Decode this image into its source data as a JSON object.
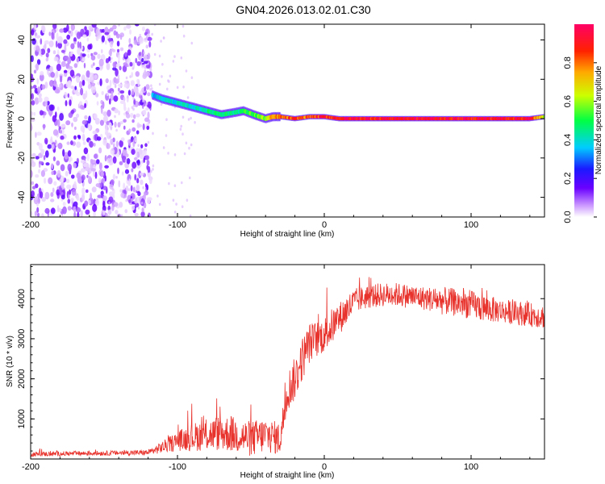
{
  "title": "GN04.2026.013.02.01.C30",
  "chart_data": [
    {
      "type": "heatmap",
      "xlabel": "Height of straight line (km)",
      "ylabel": "Frequency (Hz)",
      "xlim": [
        -200,
        150
      ],
      "ylim": [
        -50,
        48
      ],
      "xticks": [
        -200,
        -100,
        0,
        100
      ],
      "xtick_labels": [
        "-200",
        "-100",
        "0",
        "100"
      ],
      "yticks": [
        -40,
        -20,
        0,
        20,
        40
      ],
      "ytick_labels": [
        "-40",
        "-20",
        "0",
        "20",
        "40"
      ],
      "colorbar": {
        "label": "Normalized spectral amplitude",
        "range": [
          0,
          1
        ],
        "ticks": [
          0.0,
          0.2,
          0.4,
          0.6,
          0.8
        ],
        "tick_labels": [
          "0.0",
          "0.2",
          "0.4",
          "0.6",
          "0.8"
        ]
      },
      "noise_region_x": [
        -200,
        -118
      ],
      "ridge": {
        "x": [
          -117,
          -110,
          -100,
          -90,
          -80,
          -70,
          -62,
          -55,
          -48,
          -40,
          -35,
          -30,
          -20,
          -10,
          0,
          10,
          20,
          50,
          100,
          140,
          150
        ],
        "freq": [
          12,
          10,
          8,
          6,
          4,
          2,
          3,
          4,
          2,
          0,
          1,
          1,
          0,
          1,
          1,
          0,
          0,
          0,
          0,
          0,
          1
        ],
        "amplitude": [
          0.35,
          0.4,
          0.4,
          0.4,
          0.45,
          0.5,
          0.45,
          0.5,
          0.55,
          0.6,
          0.75,
          0.8,
          0.85,
          0.85,
          0.9,
          0.95,
          0.95,
          0.95,
          0.95,
          0.95,
          0.6
        ]
      }
    },
    {
      "type": "line",
      "xlabel": "Height of straight line (km)",
      "ylabel": "SNR (10 * v/v)",
      "xlim": [
        -200,
        150
      ],
      "ylim": [
        0,
        4850
      ],
      "xticks": [
        -200,
        -100,
        0,
        100
      ],
      "xtick_labels": [
        "-200",
        "-100",
        "0",
        "100"
      ],
      "yticks": [
        1000,
        2000,
        3000,
        4000
      ],
      "ytick_labels": [
        "1000",
        "2000",
        "3000",
        "4000"
      ],
      "series": [
        {
          "name": "SNR",
          "color": "#e8322c",
          "x": [
            -200,
            -180,
            -160,
            -140,
            -120,
            -110,
            -100,
            -90,
            -80,
            -70,
            -60,
            -50,
            -40,
            -30,
            -25,
            -20,
            -15,
            -10,
            -5,
            0,
            5,
            10,
            15,
            20,
            25,
            30,
            40,
            50,
            60,
            70,
            80,
            90,
            100,
            110,
            120,
            130,
            140,
            150
          ],
          "values": [
            120,
            130,
            140,
            150,
            160,
            300,
            450,
            550,
            600,
            650,
            600,
            500,
            600,
            500,
            1700,
            2000,
            2500,
            2900,
            3000,
            3100,
            3300,
            3500,
            3700,
            3900,
            4000,
            4050,
            4100,
            4100,
            4050,
            4000,
            3950,
            3900,
            3850,
            3750,
            3700,
            3650,
            3600,
            3550
          ],
          "spread": [
            60,
            60,
            60,
            60,
            70,
            150,
            250,
            350,
            400,
            450,
            450,
            450,
            450,
            400,
            500,
            550,
            550,
            500,
            450,
            450,
            450,
            400,
            400,
            350,
            300,
            300,
            300,
            300,
            300,
            300,
            350,
            350,
            350,
            350,
            300,
            300,
            300,
            300
          ]
        }
      ]
    }
  ],
  "colors": {
    "axis": "#000000",
    "line": "#e8322c",
    "background": "#ffffff"
  }
}
